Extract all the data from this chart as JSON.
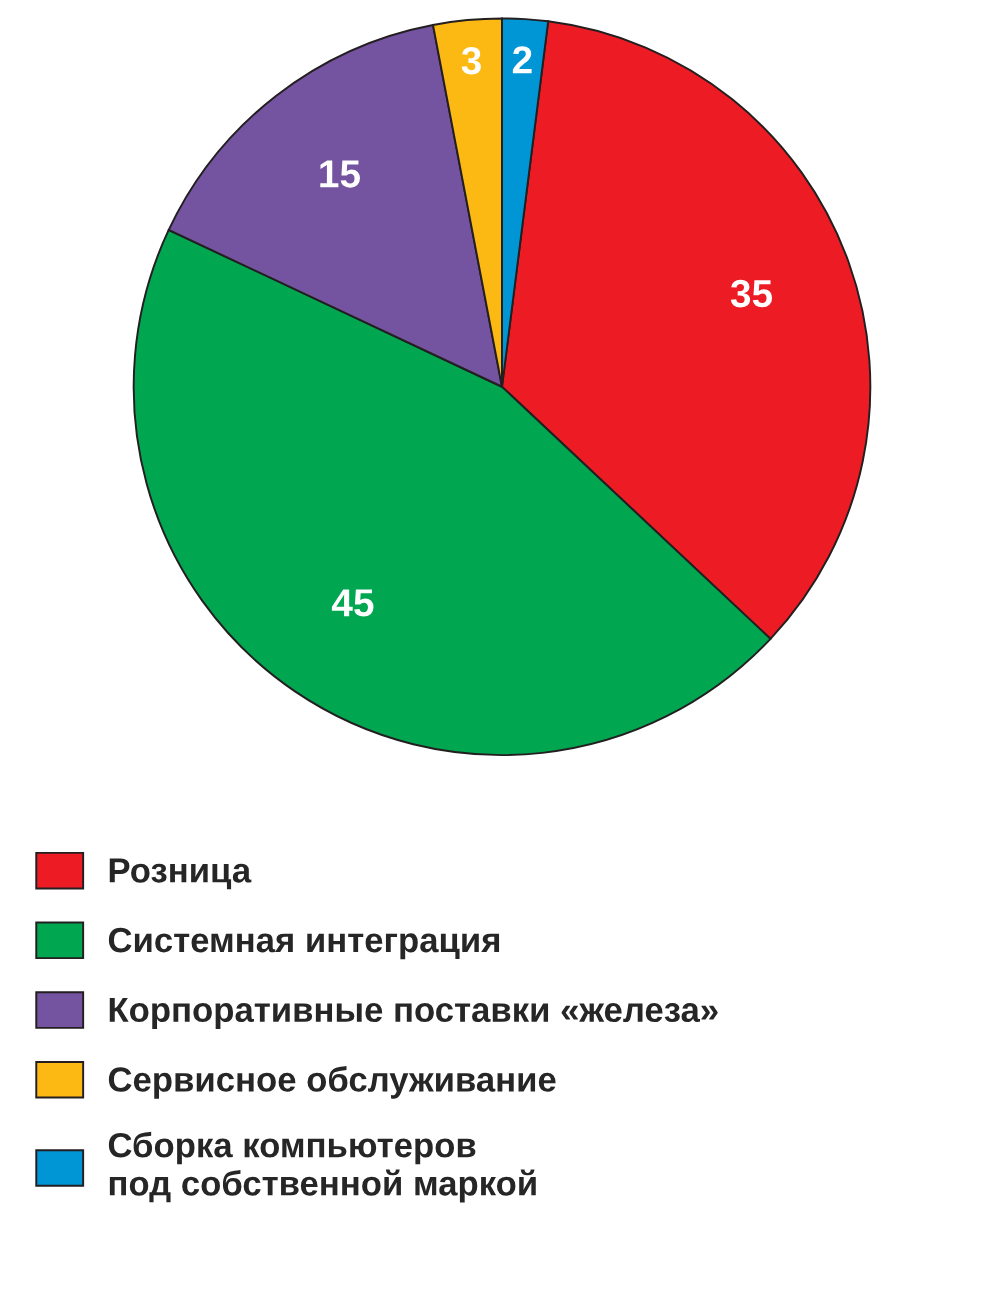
{
  "chart_data": {
    "type": "pie",
    "categories": [
      "Розница",
      "Системная интеграция",
      "Корпоративные поставки «железа»",
      "Сервисное обслуживание",
      "Сборка компьютеров\nпод собственной маркой"
    ],
    "values": [
      35,
      45,
      15,
      3,
      2
    ],
    "colors": [
      "#ed1c24",
      "#00a650",
      "#7453a0",
      "#fdb913",
      "#0096d6"
    ],
    "data_labels": true,
    "legend": "bottom"
  }
}
